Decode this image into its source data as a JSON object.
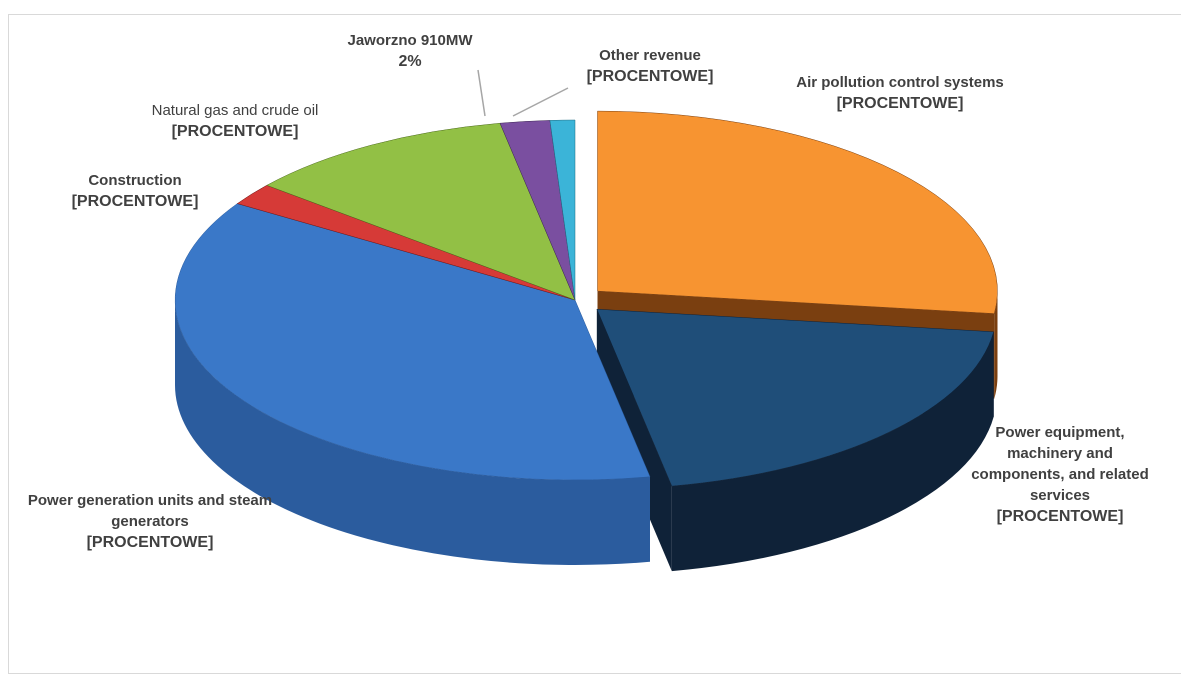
{
  "chart_data": {
    "type": "pie",
    "categories": [
      "Air pollution control systems",
      "Power equipment, machinery and components, and related services",
      "Power generation units and steam generators",
      "Construction",
      "Natural gas and crude oil",
      "Jaworzno 910MW",
      "Other revenue"
    ],
    "values": [
      27,
      20,
      37,
      2,
      11,
      2,
      1
    ],
    "value_labels": [
      "[PROCENTOWE]",
      "[PROCENTOWE]",
      "[PROCENTOWE]",
      "[PROCENTOWE]",
      "[PROCENTOWE]",
      "2%",
      "[PROCENTOWE]"
    ],
    "colors": [
      "#f79431",
      "#1f4e79",
      "#3a78c8",
      "#d63a37",
      "#92c045",
      "#7a4fa0",
      "#3bb4d8"
    ],
    "side_colors": [
      "#7a3f10",
      "#0f2238",
      "#2b5c9e",
      "#6b1515",
      "#4d6b1e",
      "#3d2654",
      "#1d6a80"
    ]
  }
}
